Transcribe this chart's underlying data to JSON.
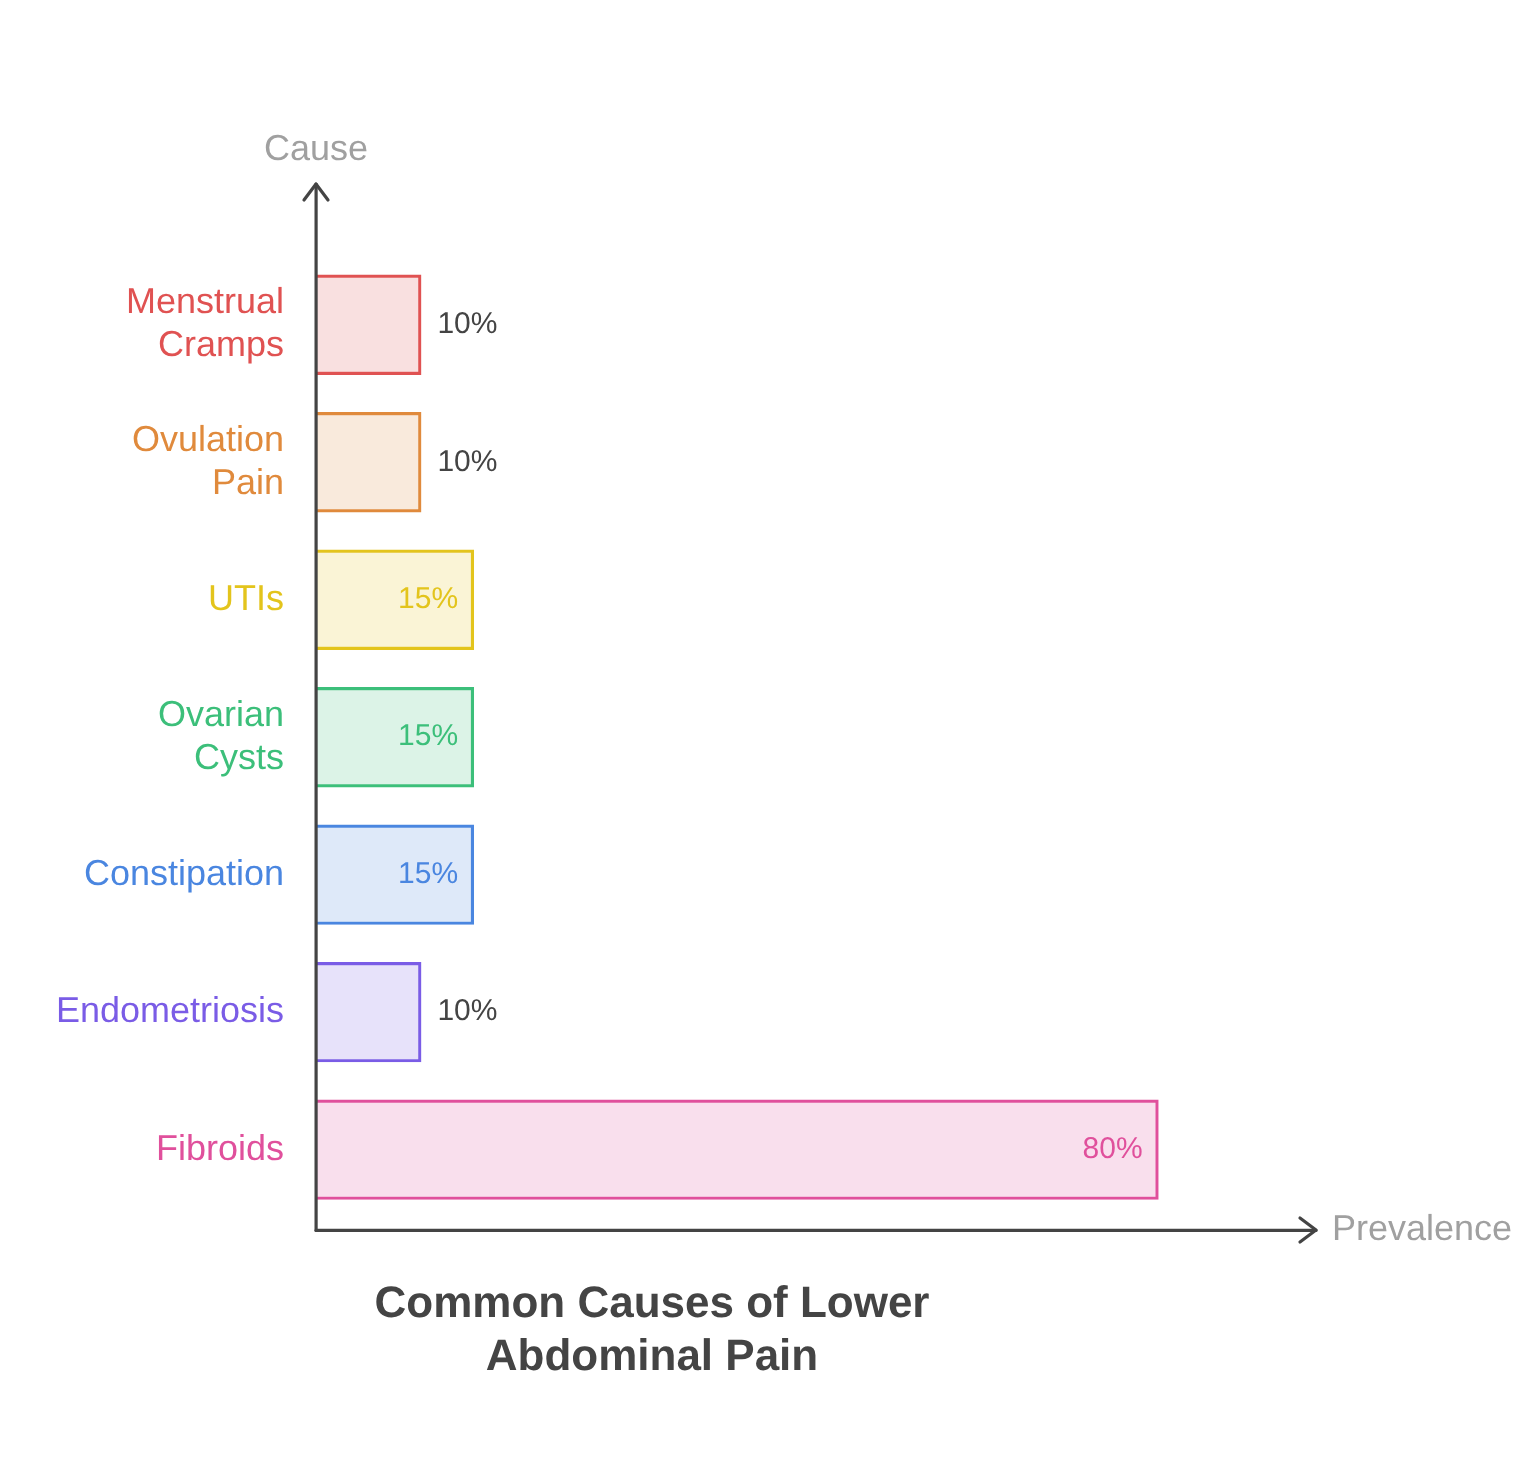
{
  "chart_data": {
    "type": "bar",
    "orientation": "horizontal",
    "title": "Common Causes of Lower Abdominal Pain",
    "xlabel": "Prevalence",
    "ylabel": "Cause",
    "categories": [
      "Menstrual Cramps",
      "Ovulation Pain",
      "UTIs",
      "Ovarian Cysts",
      "Constipation",
      "Endometriosis",
      "Fibroids"
    ],
    "values": [
      10,
      10,
      15,
      15,
      15,
      10,
      80
    ],
    "colors": [
      "#e05252",
      "#e08a3c",
      "#e3c41c",
      "#3cbf7a",
      "#4a86e0",
      "#7a5ce6",
      "#e0509c"
    ],
    "value_labels": [
      "10%",
      "10%",
      "15%",
      "15%",
      "15%",
      "10%",
      "80%"
    ]
  }
}
